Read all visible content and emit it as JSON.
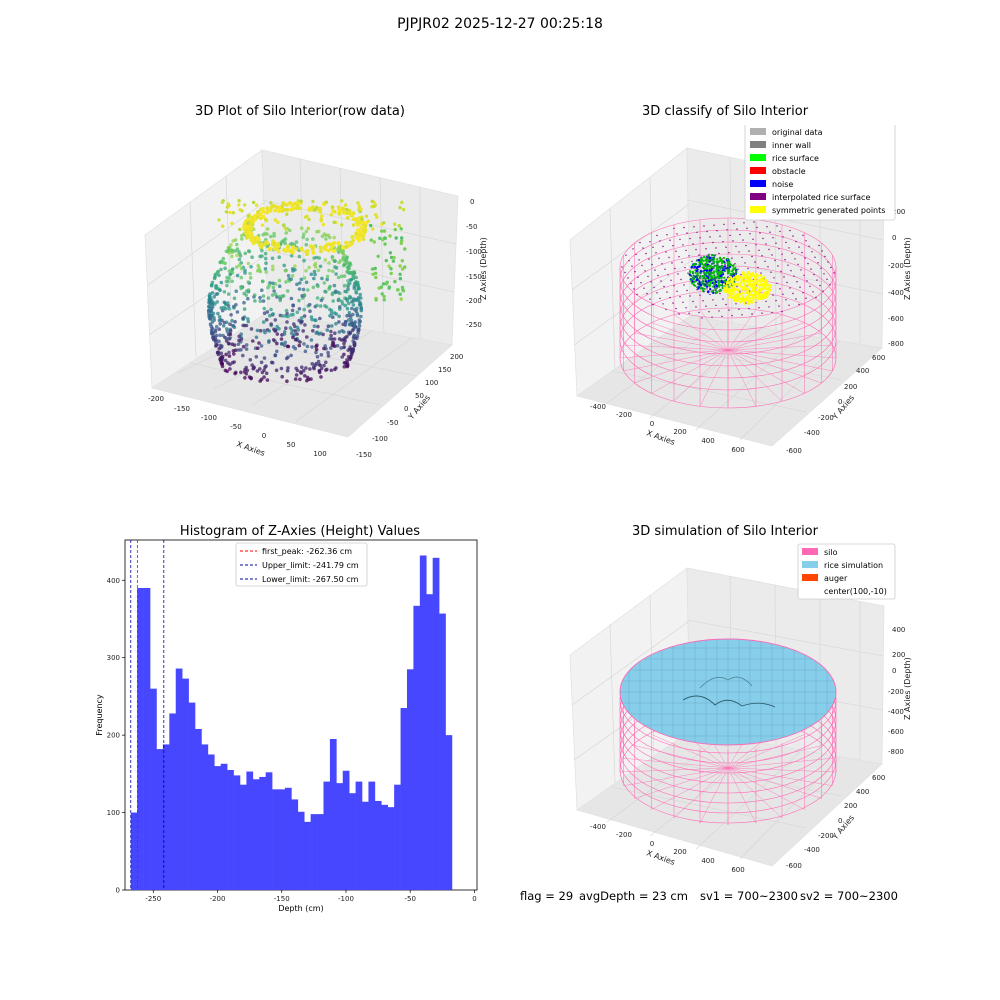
{
  "suptitle": "PJPJR02 2025-12-27 00:25:18",
  "footer": {
    "flag": "flag = 29",
    "avg_depth": "avgDepth = 23 cm",
    "sv1": "sv1 = 700~2300",
    "sv2": "sv2 = 700~2300"
  },
  "colors": {
    "bar": "#4747ff",
    "first_peak_line": "#ff0000",
    "limit_line": "#0000aa",
    "silo": "#ff69b4",
    "rice_simulation": "#87ceeb",
    "auger": "#ff4500",
    "original_data": "#b0b0b0",
    "inner_wall": "#808080",
    "rice_surface": "#00ff00",
    "obstacle": "#ff0000",
    "noise": "#0000ff",
    "interpolated_rice_surface": "#800080",
    "symmetric_generated_points": "#ffff00"
  },
  "chart_data": [
    {
      "type": "scatter",
      "title": "3D Plot of Silo Interior(row data)",
      "xlabel": "X Axies",
      "ylabel": "Y Axies",
      "zlabel": "Z Axies (Depth)",
      "x_ticks": [
        "-200",
        "-150",
        "-100",
        "-50",
        "0",
        "50",
        "100"
      ],
      "y_ticks": [
        "-150",
        "-100",
        "-50",
        "0",
        "50",
        "100",
        "150",
        "200"
      ],
      "z_ticks": [
        "0",
        "-50",
        "-100",
        "-150",
        "-200",
        "-250"
      ],
      "colormap": "viridis"
    },
    {
      "type": "scatter",
      "title": "3D classify of Silo Interior",
      "xlabel": "X Axies",
      "ylabel": "Y Axies",
      "zlabel": "Z Axies (Depth)",
      "x_ticks": [
        "-400",
        "-200",
        "0",
        "200",
        "400",
        "600"
      ],
      "y_ticks": [
        "-600",
        "-400",
        "-200",
        "0",
        "200",
        "400",
        "600"
      ],
      "z_ticks": [
        "200",
        "0",
        "-200",
        "-400",
        "-600",
        "-800"
      ],
      "legend": [
        "original data",
        "inner wall",
        "rice surface",
        "obstacle",
        "noise",
        "interpolated rice surface",
        "symmetric generated points"
      ],
      "legend_placement": "top-right"
    },
    {
      "type": "bar",
      "title": "Histogram of Z-Axies (Height) Values",
      "xlabel": "Depth (cm)",
      "ylabel": "Frequency",
      "xlim": [
        -272,
        2
      ],
      "ylim": [
        0,
        452
      ],
      "x_ticks": [
        -250,
        -200,
        -150,
        -100,
        -50,
        0
      ],
      "y_ticks": [
        0,
        100,
        200,
        300,
        400
      ],
      "bin_start": -267.5,
      "bin_width": 5,
      "values": [
        100,
        390,
        390,
        260,
        182,
        188,
        228,
        286,
        273,
        242,
        208,
        188,
        175,
        160,
        163,
        155,
        148,
        136,
        153,
        143,
        146,
        152,
        130,
        130,
        132,
        117,
        101,
        88,
        98,
        98,
        140,
        195,
        138,
        154,
        125,
        140,
        114,
        140,
        115,
        110,
        107,
        136,
        235,
        285,
        367,
        432,
        382,
        429,
        357,
        200
      ],
      "vlines": [
        {
          "label": "first_peak: -262.36 cm",
          "x": -262.36,
          "style": "dashed",
          "color": "#ff0000"
        },
        {
          "label": "Upper_limit: -241.79 cm",
          "x": -241.79,
          "style": "dashed",
          "color": "#0000aa"
        },
        {
          "label": "Lower_limit: -267.50 cm",
          "x": -267.5,
          "style": "dashed",
          "color": "#0000aa"
        }
      ],
      "legend_placement": "top-center",
      "grid": false
    },
    {
      "type": "surface",
      "title": "3D simulation of Silo Interior",
      "xlabel": "X Axies",
      "ylabel": "Y Axies",
      "zlabel": "Z Axies (Depth)",
      "x_ticks": [
        "-400",
        "-200",
        "0",
        "200",
        "400",
        "600"
      ],
      "y_ticks": [
        "-600",
        "-400",
        "-200",
        "0",
        "200",
        "400",
        "600"
      ],
      "z_ticks": [
        "400",
        "200",
        "0",
        "-200",
        "-400",
        "-600",
        "-800"
      ],
      "legend": [
        "silo",
        "rice simulation",
        "auger",
        "center(100,-10)"
      ],
      "legend_placement": "top-right"
    }
  ]
}
